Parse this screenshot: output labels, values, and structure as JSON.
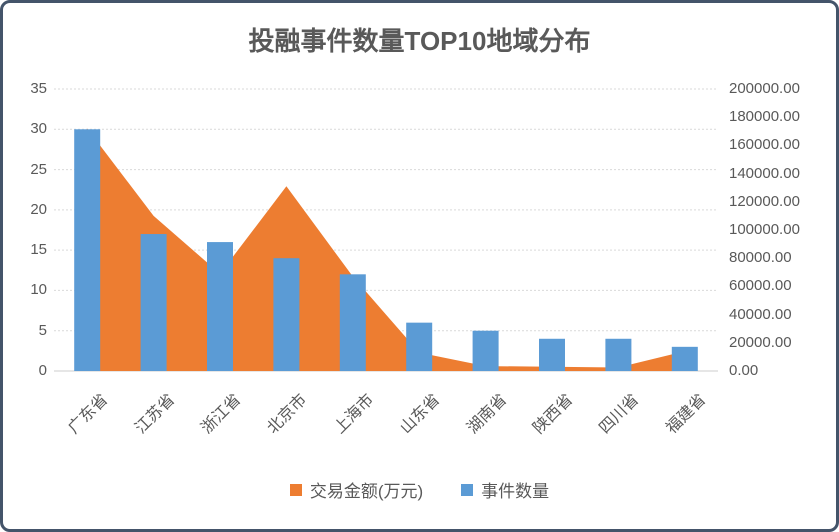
{
  "window": {
    "background": "#FFFFFF",
    "border_color": "#44546A"
  },
  "chart_data": {
    "type": "combo",
    "title": "投融事件数量TOP10地域分布",
    "categories": [
      "广东省",
      "江苏省",
      "浙江省",
      "北京市",
      "上海市",
      "山东省",
      "湖南省",
      "陕西省",
      "四川省",
      "福建省"
    ],
    "series": [
      {
        "name": "交易金额(万元)",
        "type": "area",
        "axis": "right",
        "color": "#ED7D31",
        "values": [
          172000,
          110000,
          69000,
          131000,
          67000,
          13000,
          3500,
          3000,
          2500,
          14000
        ]
      },
      {
        "name": "事件数量",
        "type": "bar",
        "axis": "left",
        "color": "#5B9BD5",
        "values": [
          30,
          17,
          16,
          14,
          12,
          6,
          5,
          4,
          4,
          3
        ]
      }
    ],
    "left_axis": {
      "min": 0,
      "max": 35,
      "step": 5,
      "ticks": [
        "0",
        "5",
        "10",
        "15",
        "20",
        "25",
        "30",
        "35"
      ]
    },
    "right_axis": {
      "min": 0,
      "max": 200000,
      "step": 20000,
      "ticks": [
        "0.00",
        "20000.00",
        "40000.00",
        "60000.00",
        "80000.00",
        "100000.00",
        "120000.00",
        "140000.00",
        "160000.00",
        "180000.00",
        "200000.00"
      ]
    },
    "legend": {
      "position": "bottom",
      "entries": [
        "交易金额(万元)",
        "事件数量"
      ]
    },
    "grid": {
      "horizontal": true,
      "color": "#D9D9D9",
      "axis_line_color": "#CCCCCC"
    }
  }
}
